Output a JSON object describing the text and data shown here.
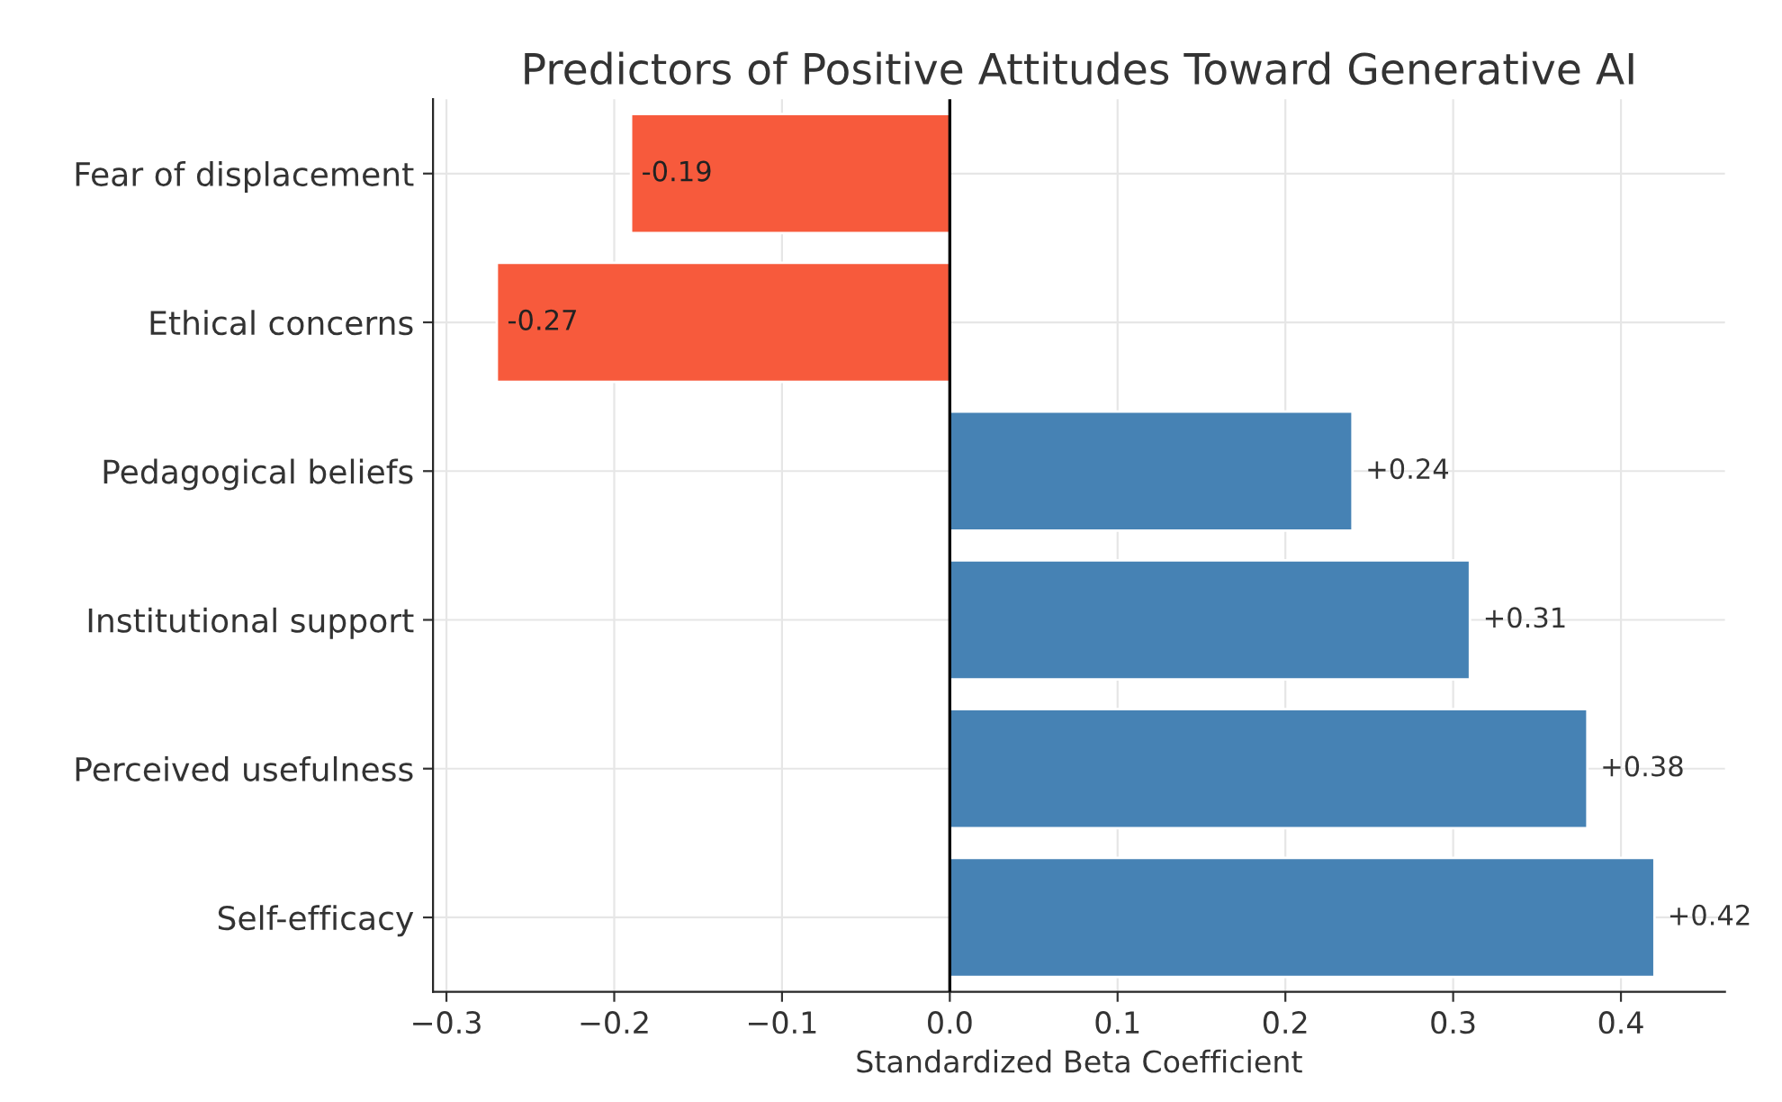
{
  "chart_data": {
    "type": "bar",
    "orientation": "horizontal",
    "title": "Predictors of Positive Attitudes Toward Generative AI",
    "xlabel": "Standardized Beta Coefficient",
    "categories": [
      "Fear of displacement",
      "Ethical concerns",
      "Pedagogical beliefs",
      "Institutional support",
      "Perceived usefulness",
      "Self-efficacy"
    ],
    "values": [
      -0.19,
      -0.27,
      0.24,
      0.31,
      0.38,
      0.42
    ],
    "colors": [
      "#f75a3c",
      "#f75a3c",
      "#4682b4",
      "#4682b4",
      "#4682b4",
      "#4682b4"
    ],
    "value_labels": [
      "-0.19",
      "-0.27",
      "+0.24",
      "+0.31",
      "+0.38",
      "+0.42"
    ],
    "xlim": [
      -0.308,
      0.462
    ],
    "xticks": [
      {
        "value": -0.3,
        "label": "−0.3"
      },
      {
        "value": -0.2,
        "label": "−0.2"
      },
      {
        "value": -0.1,
        "label": "−0.1"
      },
      {
        "value": 0.0,
        "label": "0.0"
      },
      {
        "value": 0.1,
        "label": "0.1"
      },
      {
        "value": 0.2,
        "label": "0.2"
      },
      {
        "value": 0.3,
        "label": "0.3"
      },
      {
        "value": 0.4,
        "label": "0.4"
      }
    ],
    "ref_lines": [
      {
        "axis": "x",
        "value": 0,
        "color": "#000000"
      }
    ],
    "grid": true
  }
}
